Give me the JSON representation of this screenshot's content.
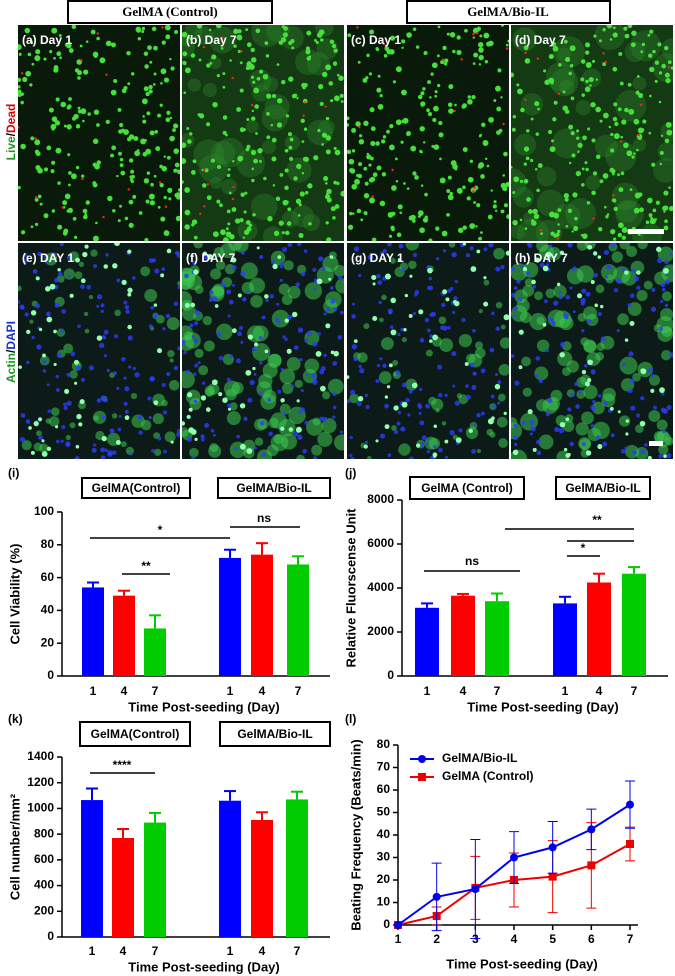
{
  "header": [
    "GelMA (Control)",
    "GelMA/Bio-IL"
  ],
  "side_labels": [
    [
      "Live",
      "/",
      "Dead"
    ],
    [
      "Actin",
      "/",
      "DAPI"
    ]
  ],
  "panels": [
    "(a) Day 1",
    "(b) Day 7",
    "(c) Day 1",
    "(d) Day 7",
    "(e) DAY 1",
    "(f) DAY 7",
    "(g) DAY 1",
    "(h) DAY 7"
  ],
  "chart_data": [
    {
      "type": "bar",
      "label": "(i)",
      "groups": [
        "GelMA(Control)",
        "GelMA/Bio-IL"
      ],
      "categories": [
        "1",
        "4",
        "7",
        "1",
        "4",
        "7"
      ],
      "values": [
        54,
        49,
        29,
        72,
        74,
        68
      ],
      "errors": [
        3,
        3,
        8,
        5,
        7,
        5
      ],
      "colors": [
        "#0000ff",
        "#ff0000",
        "#00cc00",
        "#0000ff",
        "#ff0000",
        "#00cc00"
      ],
      "ylim": [
        0,
        100
      ],
      "yticks": [
        0,
        20,
        40,
        60,
        80,
        100
      ],
      "xlabel": "Time Post-seeding (Day)",
      "ylabel": "Cell Viability (%)",
      "annotations": [
        "*",
        "**",
        "ns"
      ]
    },
    {
      "type": "bar",
      "label": "(j)",
      "groups": [
        "GelMA (Control)",
        "GelMA/Bio-IL"
      ],
      "categories": [
        "1",
        "4",
        "7",
        "1",
        "4",
        "7"
      ],
      "values": [
        3100,
        3650,
        3400,
        3300,
        4250,
        4650
      ],
      "errors": [
        200,
        80,
        350,
        300,
        400,
        300
      ],
      "colors": [
        "#0000ff",
        "#ff0000",
        "#00cc00",
        "#0000ff",
        "#ff0000",
        "#00cc00"
      ],
      "ylim": [
        0,
        8000
      ],
      "yticks": [
        0,
        2000,
        4000,
        6000,
        8000
      ],
      "xlabel": "Time Post-seeding (Day)",
      "ylabel": "Relative Fluorscense Unit",
      "annotations": [
        "ns",
        "*",
        "**"
      ]
    },
    {
      "type": "bar",
      "label": "(k)",
      "groups": [
        "GelMA(Control)",
        "GelMA/Bio-IL"
      ],
      "categories": [
        "1",
        "4",
        "7",
        "1",
        "4",
        "7"
      ],
      "values": [
        1065,
        770,
        890,
        1060,
        910,
        1070
      ],
      "errors": [
        90,
        70,
        75,
        75,
        60,
        60
      ],
      "colors": [
        "#0000ff",
        "#ff0000",
        "#00cc00",
        "#0000ff",
        "#ff0000",
        "#00cc00"
      ],
      "ylim": [
        0,
        1400
      ],
      "yticks": [
        0,
        200,
        400,
        600,
        800,
        1000,
        1200,
        1400
      ],
      "xlabel": "Time Post-seeding (Day)",
      "ylabel": "Cell number/mm²",
      "annotations": [
        "****"
      ]
    },
    {
      "type": "line",
      "label": "(l)",
      "x": [
        1,
        2,
        3,
        4,
        5,
        6,
        7
      ],
      "series": [
        {
          "name": "GelMA/Bio-IL",
          "color": "#0000ee",
          "marker": "circle",
          "values": [
            0,
            12.5,
            16,
            30,
            34.5,
            42.5,
            53.5
          ],
          "errors": [
            0,
            15,
            22,
            11.5,
            11.5,
            9,
            10.5
          ]
        },
        {
          "name": "GelMA (Control)",
          "color": "#ee0000",
          "marker": "square",
          "values": [
            0,
            4,
            16.5,
            20,
            21.5,
            26.5,
            36
          ],
          "errors": [
            0,
            4,
            14,
            12,
            16,
            19,
            7.5
          ]
        }
      ],
      "xlim": [
        1,
        7
      ],
      "xticks": [
        1,
        2,
        3,
        4,
        5,
        6,
        7
      ],
      "ylim": [
        0,
        80
      ],
      "yticks": [
        0,
        10,
        20,
        30,
        40,
        50,
        60,
        70,
        80
      ],
      "legend": "upper left",
      "xlabel": "Time Post-seeding (Day)",
      "ylabel": "Beating Frequency (Beats/min)"
    }
  ]
}
